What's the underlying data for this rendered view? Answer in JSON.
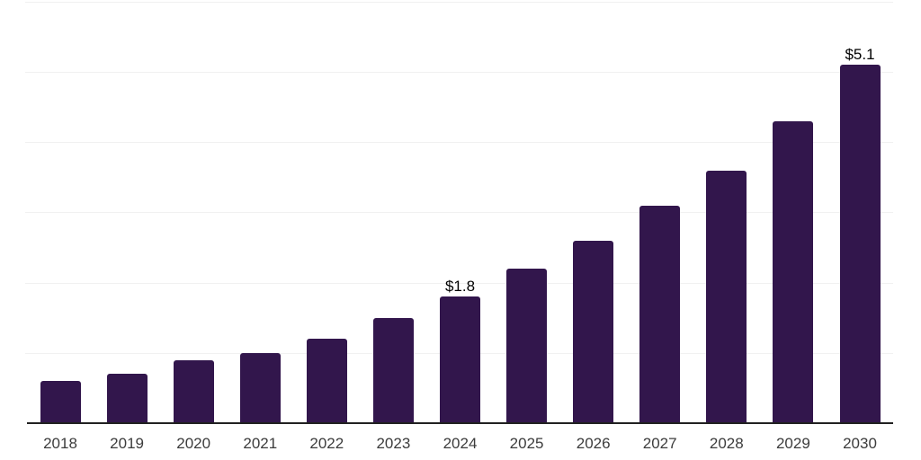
{
  "chart_data": {
    "type": "bar",
    "title": "",
    "xlabel": "",
    "ylabel": "",
    "categories": [
      "2018",
      "2019",
      "2020",
      "2021",
      "2022",
      "2023",
      "2024",
      "2025",
      "2026",
      "2027",
      "2028",
      "2029",
      "2030"
    ],
    "values": [
      0.6,
      0.7,
      0.9,
      1.0,
      1.2,
      1.5,
      1.8,
      2.2,
      2.6,
      3.1,
      3.6,
      4.3,
      5.1
    ],
    "annotations": [
      {
        "category": "2024",
        "text": "$1.8"
      },
      {
        "category": "2030",
        "text": "$5.1"
      }
    ],
    "ylim": [
      0,
      6
    ],
    "gridline_step": 1,
    "grid": true,
    "legend": false,
    "bar_color": "#32164c",
    "gridline_color": "#f1f1f1",
    "axis_line_color": "#212121",
    "tick_label_color": "#3c3c3c",
    "value_label_color": "#000000",
    "background_color": "#ffffff"
  }
}
